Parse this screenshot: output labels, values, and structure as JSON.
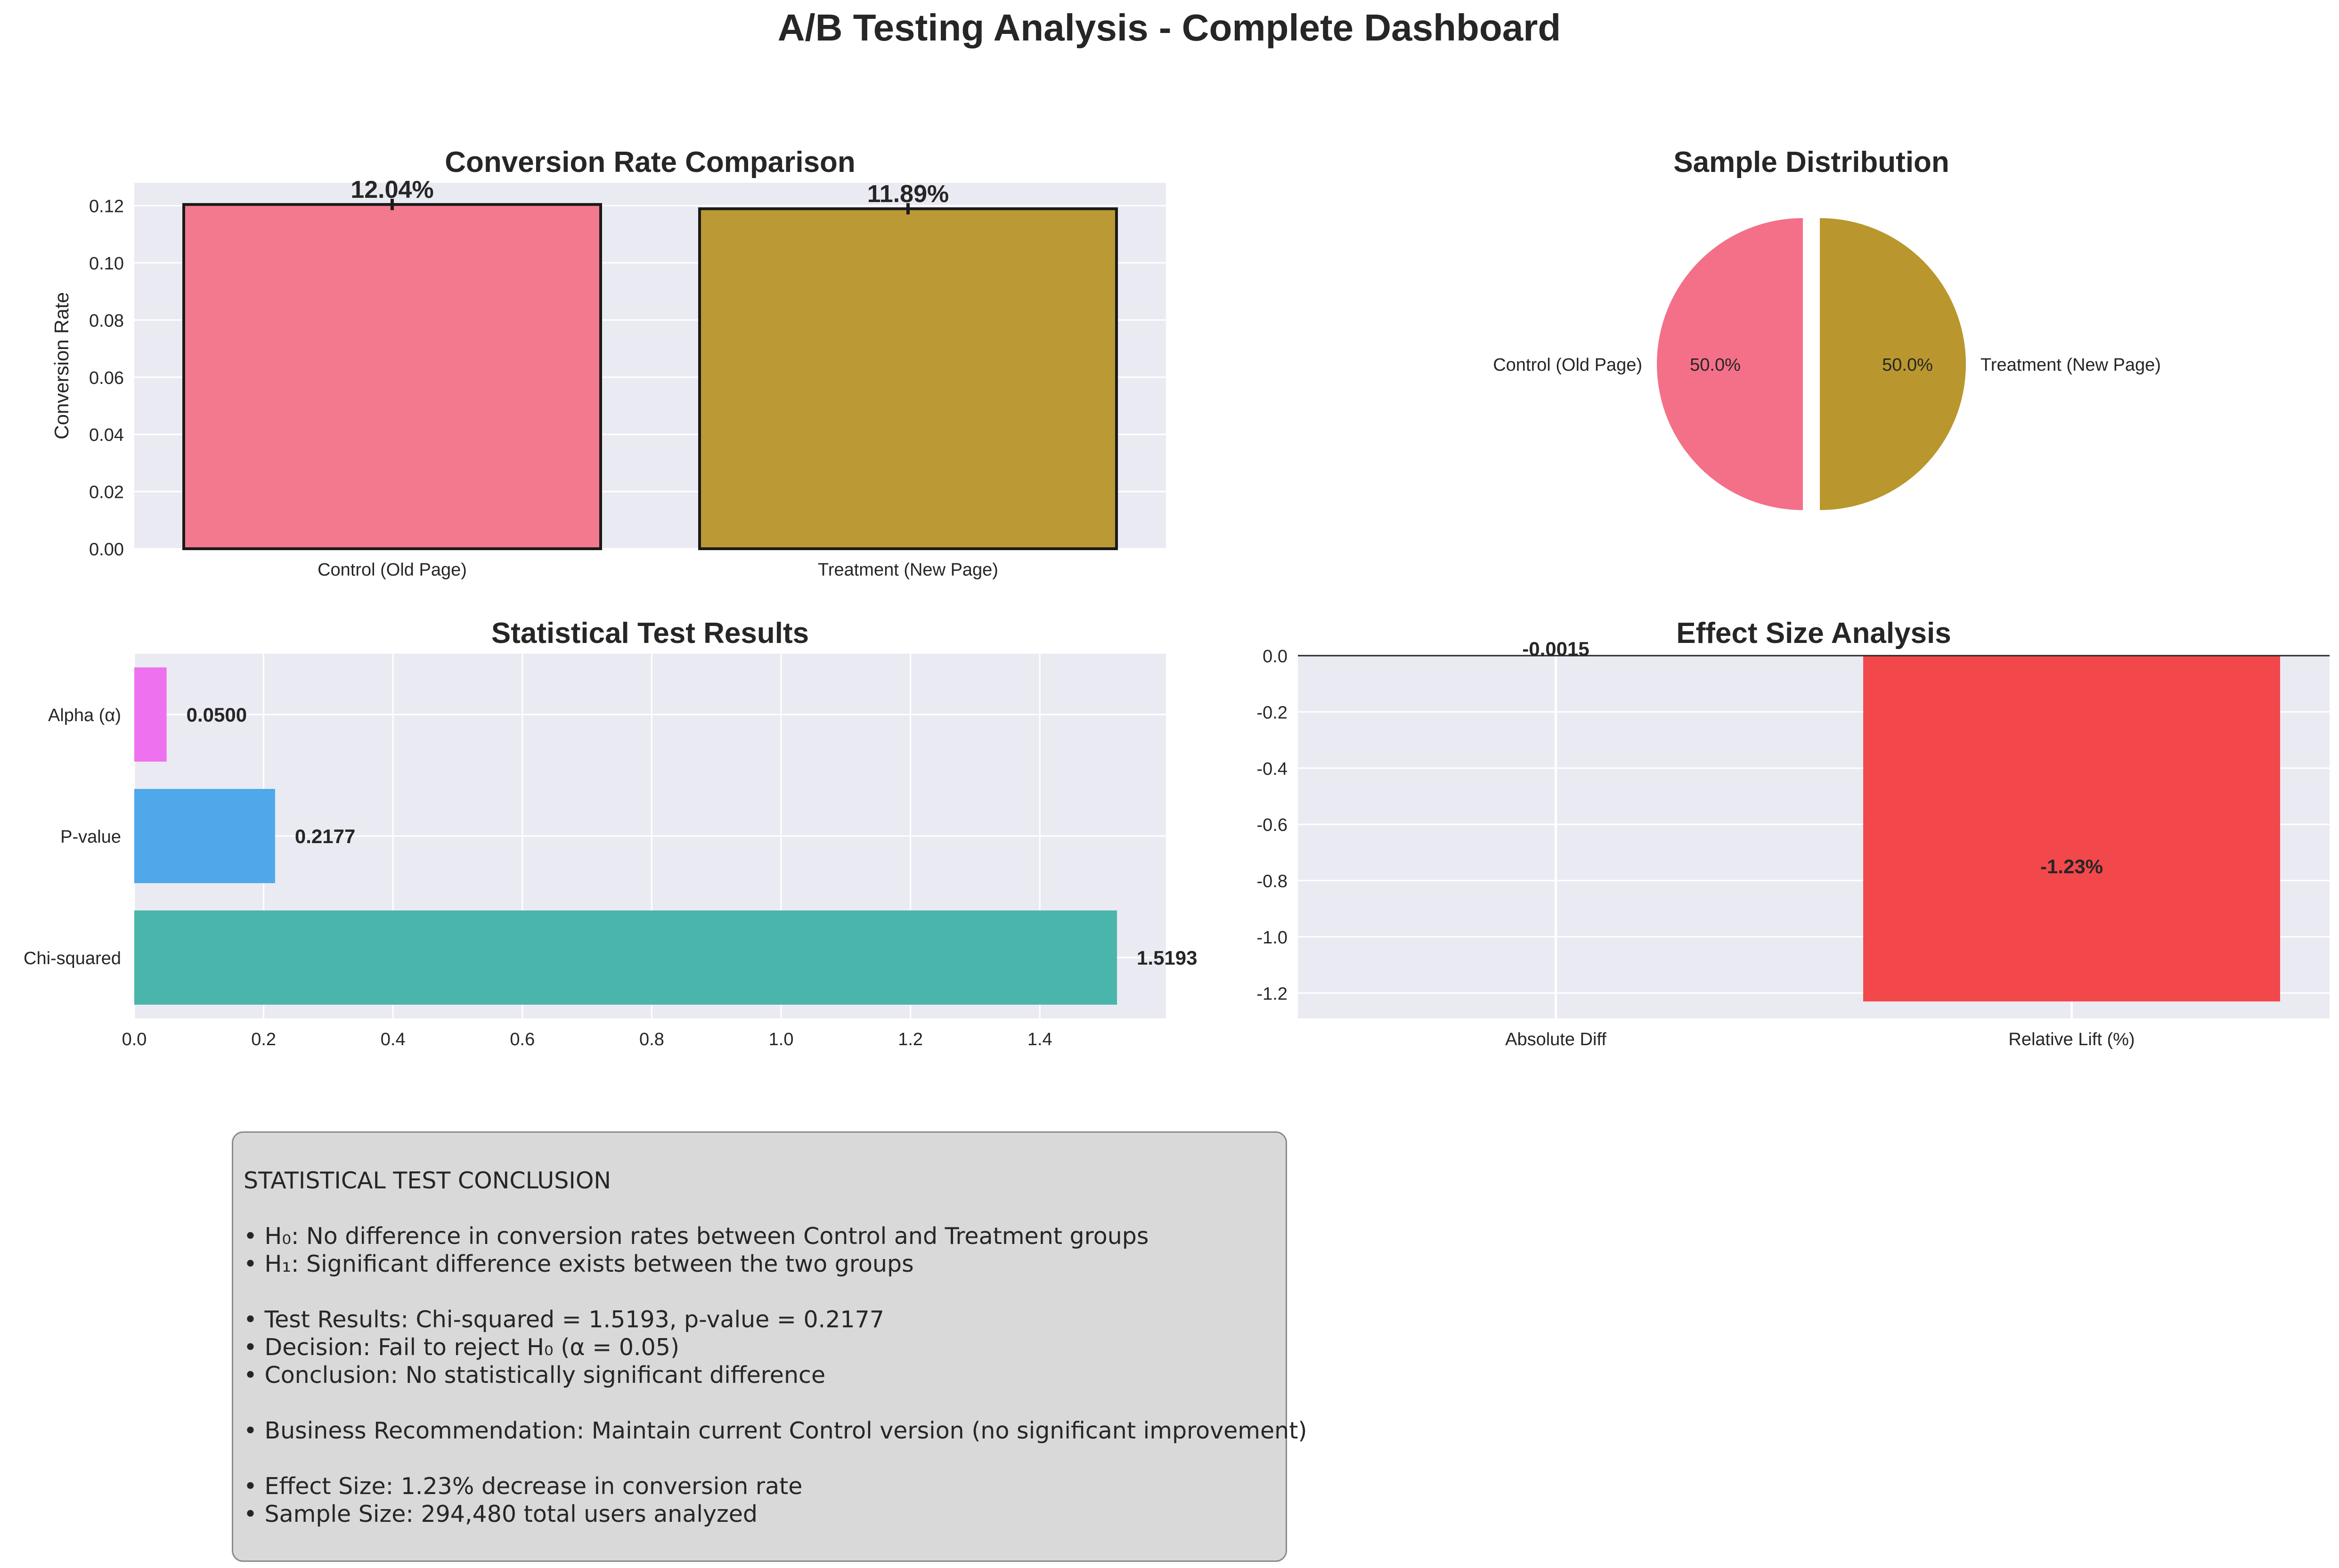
{
  "title": "A/B Testing Analysis - Complete Dashboard",
  "chart_data": [
    {
      "type": "bar",
      "title": "Conversion Rate Comparison",
      "ylabel": "Conversion Rate",
      "xlabel": "",
      "categories": [
        "Control (Old Page)",
        "Treatment (New Page)"
      ],
      "values": [
        0.1204,
        0.1189
      ],
      "data_labels": [
        "12.04%",
        "11.89%"
      ],
      "ylim": [
        0,
        0.128
      ],
      "yticks": [
        "0.00",
        "0.02",
        "0.04",
        "0.06",
        "0.08",
        "0.10",
        "0.12"
      ],
      "colors": [
        "#f3798f",
        "#bb9a35"
      ],
      "grid": true
    },
    {
      "type": "pie",
      "title": "Sample Distribution",
      "labels": [
        "Control (Old Page)",
        "Treatment (New Page)"
      ],
      "values": [
        50.0,
        50.0
      ],
      "pct_labels": [
        "50.0%",
        "50.0%"
      ],
      "colors": [
        "#f37088",
        "#b9972e"
      ]
    },
    {
      "type": "bar",
      "orientation": "horizontal",
      "title": "Statistical Test Results",
      "categories": [
        "Chi-squared",
        "P-value",
        "Alpha (α)"
      ],
      "values": [
        1.5193,
        0.2177,
        0.05
      ],
      "data_labels": [
        "1.5193",
        "0.2177",
        "0.0500"
      ],
      "xlim": [
        0,
        1.595
      ],
      "xticks": [
        "0.0",
        "0.2",
        "0.4",
        "0.6",
        "0.8",
        "1.0",
        "1.2",
        "1.4"
      ],
      "colors": [
        "#4ab5ab",
        "#4fa8ea",
        "#ee72ef"
      ],
      "grid": true
    },
    {
      "type": "bar",
      "title": "Effect Size Analysis",
      "categories": [
        "Absolute Diff",
        "Relative Lift (%)"
      ],
      "values": [
        -0.0015,
        -1.23
      ],
      "data_labels": [
        "-0.0015",
        "-1.23%"
      ],
      "ylim": [
        -1.29,
        0.0
      ],
      "yticks": [
        "0.0",
        "-0.2",
        "-0.4",
        "-0.6",
        "-0.8",
        "-1.0",
        "-1.2"
      ],
      "colors": [
        "#f33a3d",
        "#f33a3d"
      ],
      "grid": true
    }
  ],
  "conclusion": {
    "lines": [
      "STATISTICAL TEST CONCLUSION",
      "",
      "• H₀: No difference in conversion rates between Control and Treatment groups",
      "• H₁: Significant difference exists between the two groups",
      "",
      "• Test Results: Chi-squared = 1.5193, p-value = 0.2177",
      "• Decision: Fail to reject H₀ (α = 0.05)",
      "• Conclusion: No statistically significant difference",
      "",
      "• Business Recommendation: Maintain current Control version (no significant improvement)",
      "",
      "• Effect Size: 1.23% decrease in conversion rate",
      "• Sample Size: 294,480 total users analyzed"
    ]
  }
}
